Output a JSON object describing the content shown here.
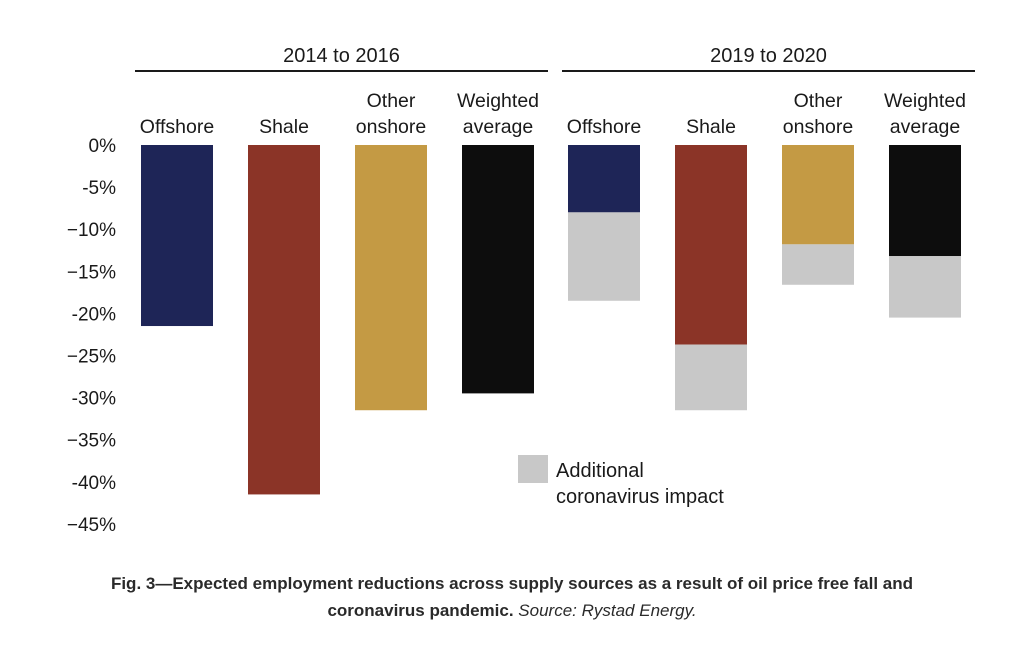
{
  "chart_data": {
    "type": "bar",
    "stacked": true,
    "groups": [
      {
        "label": "2014 to 2016",
        "categories": [
          {
            "label": [
              "Offshore"
            ],
            "base": -21.5,
            "additional": 0
          },
          {
            "label": [
              "Shale"
            ],
            "base": -41.5,
            "additional": 0
          },
          {
            "label": [
              "Other",
              "onshore"
            ],
            "base": -31.5,
            "additional": 0
          },
          {
            "label": [
              "Weighted",
              "average"
            ],
            "base": -29.5,
            "additional": 0
          }
        ]
      },
      {
        "label": "2019 to 2020",
        "categories": [
          {
            "label": [
              "Offshore"
            ],
            "base": -8.0,
            "additional": -10.5
          },
          {
            "label": [
              "Shale"
            ],
            "base": -23.7,
            "additional": -7.8
          },
          {
            "label": [
              "Other",
              "onshore"
            ],
            "base": -11.8,
            "additional": -4.8
          },
          {
            "label": [
              "Weighted",
              "average"
            ],
            "base": -13.2,
            "additional": -7.3
          }
        ]
      }
    ],
    "category_colors": [
      "#1e2557",
      "#8b3427",
      "#c49a44",
      "#0d0d0d"
    ],
    "additional_color": "#c8c8c8",
    "yticks": [
      0,
      -5,
      -10,
      -15,
      -20,
      -25,
      -30,
      -35,
      -40,
      -45
    ],
    "ytick_labels": [
      "0%",
      "-5%",
      "−10%",
      "−15%",
      "-20%",
      "−25%",
      "-30%",
      "−35%",
      "-40%",
      "−45%"
    ],
    "ylim": [
      -45,
      0
    ],
    "legend": {
      "label": [
        "Additional",
        "coronavirus impact"
      ],
      "color": "#c8c8c8"
    }
  },
  "caption": {
    "main": "Fig. 3—Expected employment reductions across supply sources as a result of oil price free fall and",
    "line2": "coronavirus pandemic. ",
    "source": "Source: Rystad Energy."
  }
}
